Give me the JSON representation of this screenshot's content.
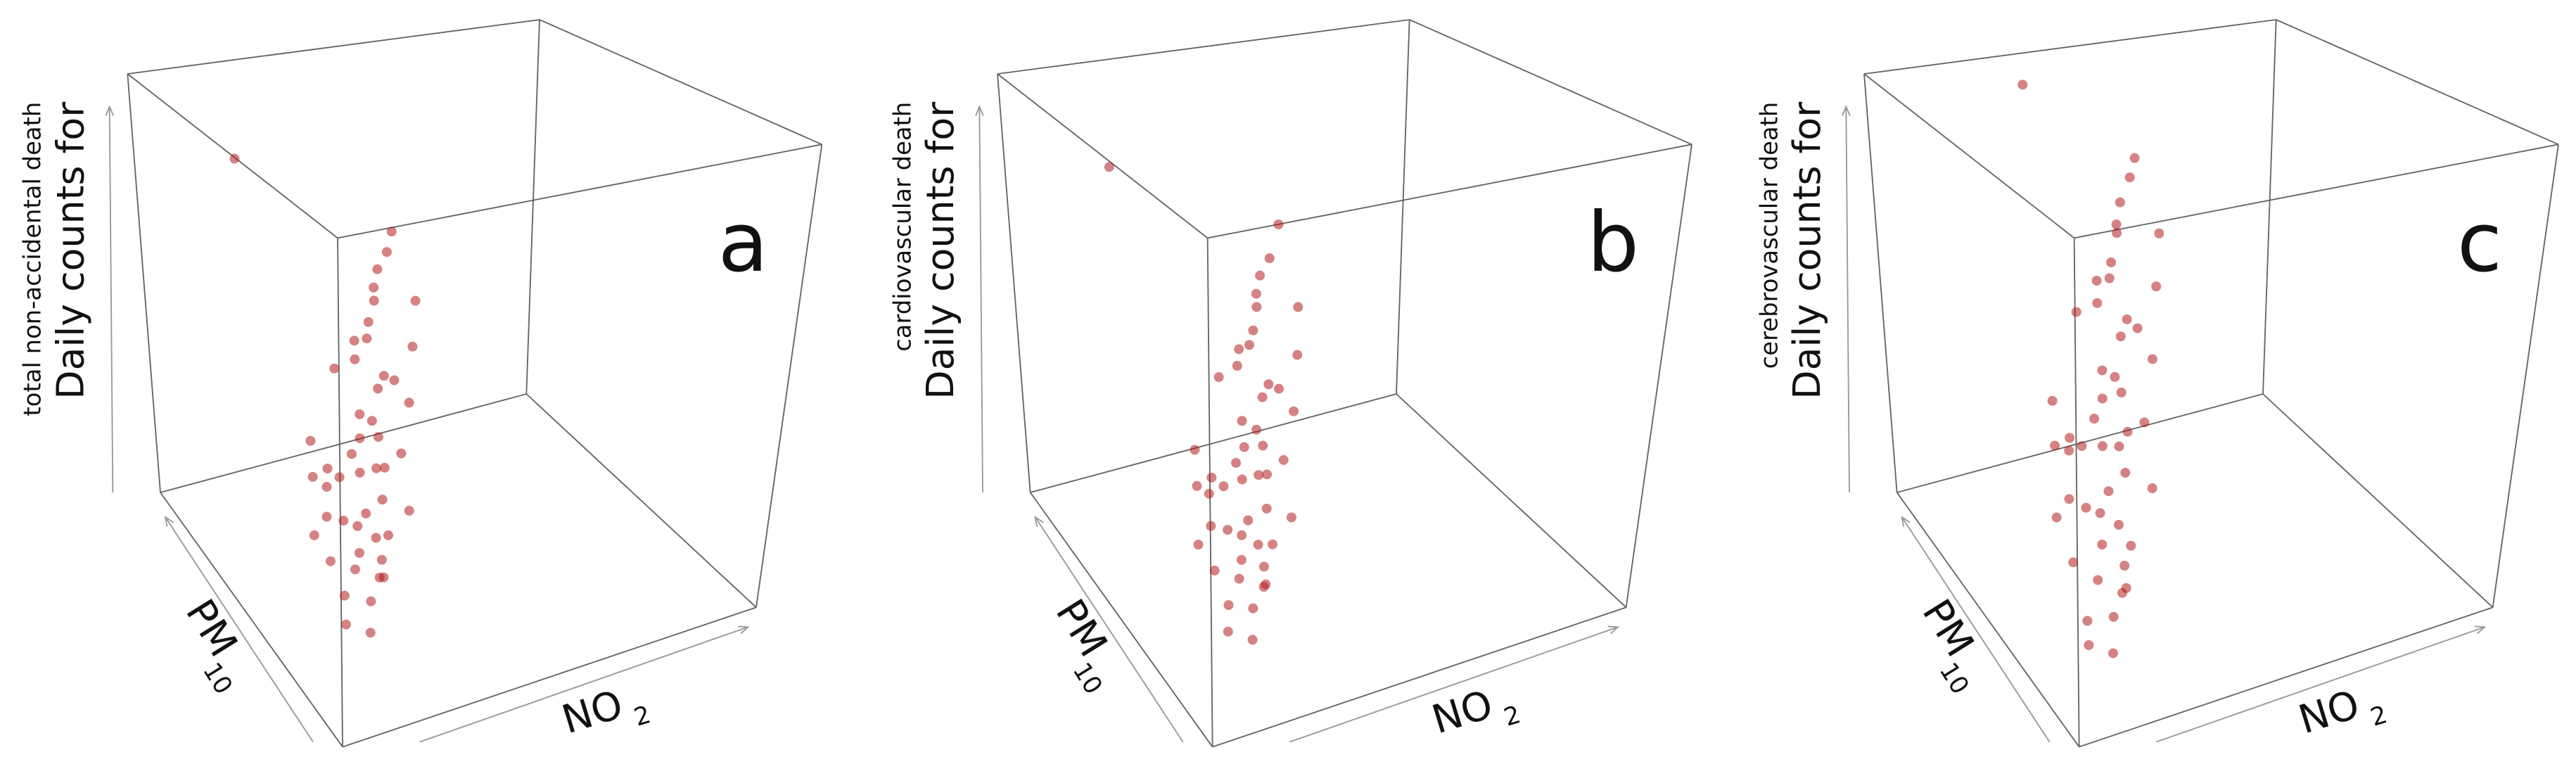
{
  "chart_data": [
    {
      "type": "scatter3d",
      "panel": "a",
      "color": "#b31b1b",
      "zlabel": "Daily counts for",
      "zlabel_sub": "total non-accidental death",
      "xlabel": "NO",
      "xlabel_subscript": "2",
      "ylabel": "PM",
      "ylabel_subscript": "10",
      "xlim": [
        0,
        1
      ],
      "ylim": [
        0,
        1
      ],
      "zlim": [
        0,
        1
      ],
      "x": [
        0.12,
        0.18,
        0.22,
        0.15,
        0.25,
        0.3,
        0.1,
        0.2,
        0.28,
        0.35,
        0.16,
        0.24,
        0.19,
        0.32,
        0.4,
        0.13,
        0.21,
        0.27,
        0.38,
        0.45,
        0.14,
        0.23,
        0.29,
        0.17,
        0.33,
        0.42,
        0.11,
        0.26,
        0.36,
        0.5,
        0.2,
        0.31,
        0.15,
        0.44,
        0.22,
        0.37,
        0.18,
        0.27,
        0.48,
        0.09,
        0.25,
        0.34,
        0.3,
        0.41,
        0.16,
        0.52,
        0.28,
        0.39,
        0.21,
        0.05
      ],
      "y": [
        0.25,
        0.3,
        0.35,
        0.4,
        0.3,
        0.45,
        0.2,
        0.5,
        0.38,
        0.55,
        0.28,
        0.42,
        0.33,
        0.6,
        0.5,
        0.36,
        0.26,
        0.48,
        0.65,
        0.58,
        0.45,
        0.32,
        0.52,
        0.22,
        0.4,
        0.7,
        0.3,
        0.35,
        0.62,
        0.66,
        0.44,
        0.5,
        0.18,
        0.72,
        0.27,
        0.56,
        0.38,
        0.6,
        0.75,
        0.34,
        0.48,
        0.64,
        0.3,
        0.68,
        0.5,
        0.8,
        0.42,
        0.55,
        0.24,
        0.6
      ],
      "z": [
        0.15,
        0.2,
        0.25,
        0.3,
        0.22,
        0.35,
        0.12,
        0.28,
        0.32,
        0.4,
        0.18,
        0.3,
        0.24,
        0.45,
        0.38,
        0.26,
        0.16,
        0.34,
        0.5,
        0.46,
        0.3,
        0.21,
        0.37,
        0.14,
        0.33,
        0.55,
        0.2,
        0.27,
        0.48,
        0.52,
        0.29,
        0.36,
        0.1,
        0.58,
        0.19,
        0.42,
        0.23,
        0.44,
        0.6,
        0.24,
        0.31,
        0.47,
        0.26,
        0.53,
        0.35,
        0.62,
        0.3,
        0.41,
        0.17,
        0.95
      ]
    },
    {
      "type": "scatter3d",
      "panel": "b",
      "color": "#b31b1b",
      "zlabel": "Daily counts for",
      "zlabel_sub": "cardiovascular death",
      "xlabel": "NO",
      "xlabel_subscript": "2",
      "ylabel": "PM",
      "ylabel_subscript": "10",
      "xlim": [
        0,
        1
      ],
      "ylim": [
        0,
        1
      ],
      "zlim": [
        0,
        1
      ],
      "x": [
        0.14,
        0.2,
        0.24,
        0.17,
        0.27,
        0.32,
        0.12,
        0.22,
        0.3,
        0.37,
        0.18,
        0.26,
        0.21,
        0.34,
        0.42,
        0.15,
        0.23,
        0.29,
        0.4,
        0.47,
        0.16,
        0.25,
        0.31,
        0.19,
        0.35,
        0.44,
        0.13,
        0.28,
        0.38,
        0.52,
        0.22,
        0.33,
        0.17,
        0.46,
        0.24,
        0.39,
        0.2,
        0.29,
        0.5,
        0.11,
        0.27,
        0.36,
        0.32,
        0.43,
        0.18,
        0.55,
        0.3,
        0.41,
        0.23,
        0.06
      ],
      "y": [
        0.22,
        0.28,
        0.33,
        0.38,
        0.27,
        0.42,
        0.18,
        0.47,
        0.36,
        0.52,
        0.25,
        0.4,
        0.3,
        0.58,
        0.47,
        0.33,
        0.23,
        0.45,
        0.62,
        0.55,
        0.42,
        0.3,
        0.5,
        0.2,
        0.38,
        0.68,
        0.27,
        0.32,
        0.6,
        0.64,
        0.41,
        0.47,
        0.16,
        0.7,
        0.25,
        0.53,
        0.35,
        0.57,
        0.73,
        0.31,
        0.45,
        0.61,
        0.28,
        0.66,
        0.47,
        0.78,
        0.4,
        0.52,
        0.22,
        0.6
      ],
      "z": [
        0.14,
        0.19,
        0.24,
        0.29,
        0.21,
        0.34,
        0.11,
        0.27,
        0.31,
        0.39,
        0.17,
        0.29,
        0.23,
        0.44,
        0.37,
        0.25,
        0.15,
        0.33,
        0.49,
        0.45,
        0.29,
        0.2,
        0.36,
        0.13,
        0.32,
        0.54,
        0.19,
        0.26,
        0.47,
        0.51,
        0.28,
        0.35,
        0.09,
        0.57,
        0.18,
        0.41,
        0.22,
        0.43,
        0.59,
        0.23,
        0.3,
        0.46,
        0.25,
        0.52,
        0.34,
        0.64,
        0.29,
        0.4,
        0.16,
        0.93
      ]
    },
    {
      "type": "scatter3d",
      "panel": "c",
      "color": "#b31b1b",
      "zlabel": "Daily counts for",
      "zlabel_sub": "cerebrovascular death",
      "xlabel": "NO",
      "xlabel_subscript": "2",
      "ylabel": "PM",
      "ylabel_subscript": "10",
      "xlim": [
        0,
        1
      ],
      "ylim": [
        0,
        1
      ],
      "zlim": [
        0,
        1
      ],
      "x": [
        0.13,
        0.19,
        0.23,
        0.16,
        0.26,
        0.31,
        0.11,
        0.21,
        0.29,
        0.36,
        0.17,
        0.25,
        0.2,
        0.33,
        0.41,
        0.14,
        0.22,
        0.28,
        0.39,
        0.46,
        0.15,
        0.24,
        0.3,
        0.18,
        0.34,
        0.43,
        0.12,
        0.27,
        0.37,
        0.51,
        0.21,
        0.32,
        0.16,
        0.45,
        0.23,
        0.38,
        0.19,
        0.28,
        0.49,
        0.1,
        0.26,
        0.35,
        0.31,
        0.42,
        0.17,
        0.53,
        0.29,
        0.4,
        0.22,
        0.3
      ],
      "y": [
        0.24,
        0.29,
        0.34,
        0.39,
        0.29,
        0.44,
        0.19,
        0.49,
        0.37,
        0.54,
        0.27,
        0.41,
        0.32,
        0.59,
        0.49,
        0.35,
        0.25,
        0.47,
        0.64,
        0.57,
        0.44,
        0.31,
        0.51,
        0.21,
        0.39,
        0.69,
        0.29,
        0.34,
        0.61,
        0.65,
        0.43,
        0.49,
        0.17,
        0.71,
        0.26,
        0.55,
        0.37,
        0.59,
        0.74,
        0.33,
        0.47,
        0.63,
        0.29,
        0.67,
        0.49,
        0.79,
        0.41,
        0.54,
        0.23,
        0.85
      ],
      "z": [
        0.1,
        0.22,
        0.3,
        0.38,
        0.2,
        0.45,
        0.08,
        0.35,
        0.4,
        0.52,
        0.16,
        0.36,
        0.27,
        0.58,
        0.48,
        0.3,
        0.13,
        0.43,
        0.64,
        0.6,
        0.37,
        0.24,
        0.47,
        0.11,
        0.4,
        0.7,
        0.2,
        0.33,
        0.62,
        0.68,
        0.36,
        0.46,
        0.06,
        0.74,
        0.18,
        0.55,
        0.26,
        0.57,
        0.78,
        0.28,
        0.39,
        0.61,
        0.31,
        0.69,
        0.44,
        0.8,
        0.35,
        0.53,
        0.15,
        0.99
      ]
    }
  ]
}
